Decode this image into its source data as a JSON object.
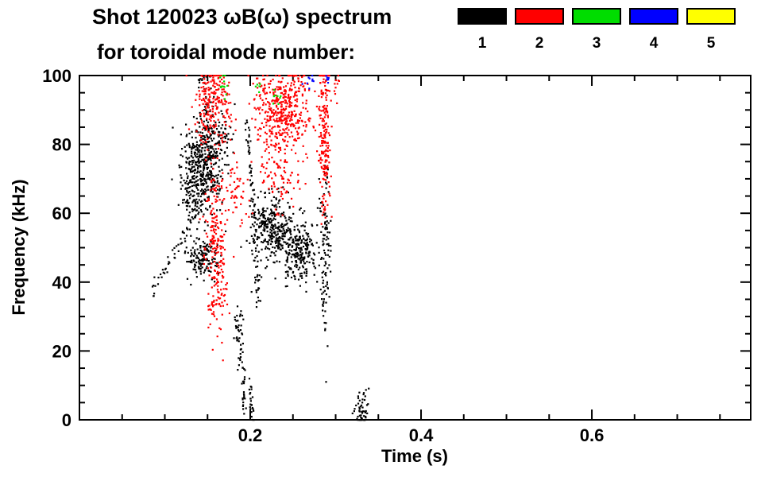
{
  "header": {
    "title_line1": "Shot 120023 ωB(ω) spectrum",
    "title_line2": "for toroidal mode number:"
  },
  "legend": {
    "entries": [
      {
        "label": "1",
        "color": "#000000"
      },
      {
        "label": "2",
        "color": "#ff0000"
      },
      {
        "label": "3",
        "color": "#00dd00"
      },
      {
        "label": "4",
        "color": "#0000ff"
      },
      {
        "label": "5",
        "color": "#ffff00"
      }
    ]
  },
  "axes": {
    "x": {
      "label": "Time (s)",
      "min": 0,
      "max": 0.786,
      "major_ticks": [
        0.2,
        0.4,
        0.6
      ],
      "minor_step": 0.05
    },
    "y": {
      "label": "Frequency (kHz)",
      "min": 0,
      "max": 100,
      "major_ticks": [
        0,
        20,
        40,
        60,
        80,
        100
      ],
      "minor_step": 5
    }
  },
  "chart_data": {
    "type": "scatter",
    "title": "Shot 120023 ωB(ω) spectrum for toroidal mode number",
    "xlabel": "Time (s)",
    "ylabel": "Frequency (kHz)",
    "xlim": [
      0,
      0.786
    ],
    "ylim": [
      0,
      100
    ],
    "grid": false,
    "legend_position": "top",
    "series": [
      {
        "name": "n=1",
        "color": "#000000",
        "clusters": [
          {
            "t": 0.146,
            "f": 74,
            "dt": 0.011,
            "df": 6.5,
            "n": 420
          },
          {
            "t": 0.131,
            "f": 66,
            "dt": 0.006,
            "df": 4,
            "n": 80
          },
          {
            "t": 0.143,
            "f": 47,
            "dt": 0.01,
            "df": 2.8,
            "n": 150
          },
          {
            "t": 0.165,
            "f": 83,
            "dt": 0.006,
            "df": 3.5,
            "n": 60
          },
          {
            "t": 0.15,
            "f": 88,
            "dt": 0.004,
            "df": 3,
            "n": 30
          },
          {
            "t": 0.146,
            "f": 99,
            "dt": 0.005,
            "df": 1.5,
            "n": 18
          },
          {
            "t": 0.227,
            "f": 55,
            "dt": 0.011,
            "df": 5,
            "n": 280
          },
          {
            "t": 0.256,
            "f": 49.5,
            "dt": 0.01,
            "df": 4.5,
            "n": 240
          },
          {
            "t": 0.288,
            "f": 50,
            "dt": 0.0035,
            "df": 13,
            "n": 110
          },
          {
            "t": 0.33,
            "f": 3.5,
            "dt": 0.004,
            "df": 3,
            "n": 55
          },
          {
            "t": 0.186,
            "f": 25,
            "dt": 0.003,
            "df": 4,
            "n": 40
          }
        ],
        "strokes": [
          {
            "pts": [
              [
                0.085,
                37
              ],
              [
                0.101,
                44
              ],
              [
                0.117,
                51
              ],
              [
                0.132,
                58
              ],
              [
                0.144,
                63
              ]
            ],
            "n": 80,
            "dash": true,
            "jt": 0.0015,
            "jf": 1.2
          },
          {
            "pts": [
              [
                0.196,
                87
              ],
              [
                0.2,
                76
              ],
              [
                0.203,
                64
              ],
              [
                0.206,
                52
              ],
              [
                0.208,
                42
              ],
              [
                0.209,
                34
              ]
            ],
            "n": 90,
            "jt": 0.0018,
            "jf": 1.5
          },
          {
            "pts": [
              [
                0.191,
                18
              ],
              [
                0.192,
                9
              ],
              [
                0.193,
                2
              ]
            ],
            "n": 28,
            "jt": 0.0012,
            "jf": 1.2
          },
          {
            "pts": [
              [
                0.2,
                11
              ],
              [
                0.201,
                4
              ],
              [
                0.202,
                1
              ]
            ],
            "n": 24,
            "jt": 0.0012,
            "jf": 1.2
          },
          {
            "pts": [
              [
                0.214,
                60
              ],
              [
                0.218,
                57
              ]
            ],
            "n": 20,
            "jt": 0.002,
            "jf": 1.5
          }
        ]
      },
      {
        "name": "n=2",
        "color": "#ff0000",
        "clusters": [
          {
            "t": 0.155,
            "f": 95,
            "dt": 0.01,
            "df": 3.5,
            "n": 140
          },
          {
            "t": 0.15,
            "f": 86,
            "dt": 0.006,
            "df": 3,
            "n": 50
          },
          {
            "t": 0.157,
            "f": 57,
            "dt": 0.005,
            "df": 14,
            "n": 150
          },
          {
            "t": 0.166,
            "f": 46,
            "dt": 0.0035,
            "df": 10,
            "n": 70
          },
          {
            "t": 0.154,
            "f": 32,
            "dt": 0.004,
            "df": 3,
            "n": 25
          },
          {
            "t": 0.183,
            "f": 66,
            "dt": 0.007,
            "df": 6,
            "n": 55
          },
          {
            "t": 0.172,
            "f": 89,
            "dt": 0.004,
            "df": 3,
            "n": 30
          },
          {
            "t": 0.238,
            "f": 89,
            "dt": 0.016,
            "df": 6.5,
            "n": 430
          },
          {
            "t": 0.234,
            "f": 70,
            "dt": 0.011,
            "df": 4.5,
            "n": 80
          },
          {
            "t": 0.287,
            "f": 82,
            "dt": 0.0035,
            "df": 13,
            "n": 200
          },
          {
            "t": 0.301,
            "f": 97,
            "dt": 0.002,
            "df": 2,
            "n": 10
          },
          {
            "t": 0.213,
            "f": 96,
            "dt": 0.004,
            "df": 2.5,
            "n": 20
          }
        ],
        "strokes": []
      },
      {
        "name": "n=3",
        "color": "#00dd00",
        "clusters": [
          {
            "t": 0.168,
            "f": 97.5,
            "dt": 0.004,
            "df": 1.8,
            "n": 12
          },
          {
            "t": 0.23,
            "f": 93,
            "dt": 0.003,
            "df": 1.8,
            "n": 8
          },
          {
            "t": 0.211,
            "f": 97,
            "dt": 0.002,
            "df": 1.2,
            "n": 5
          }
        ],
        "strokes": []
      },
      {
        "name": "n=4",
        "color": "#0000ff",
        "clusters": [
          {
            "t": 0.268,
            "f": 98.5,
            "dt": 0.004,
            "df": 1.5,
            "n": 9
          },
          {
            "t": 0.289,
            "f": 99.5,
            "dt": 0.002,
            "df": 1,
            "n": 6
          }
        ],
        "strokes": []
      },
      {
        "name": "n=5",
        "color": "#ffff00",
        "clusters": [],
        "strokes": []
      }
    ]
  }
}
